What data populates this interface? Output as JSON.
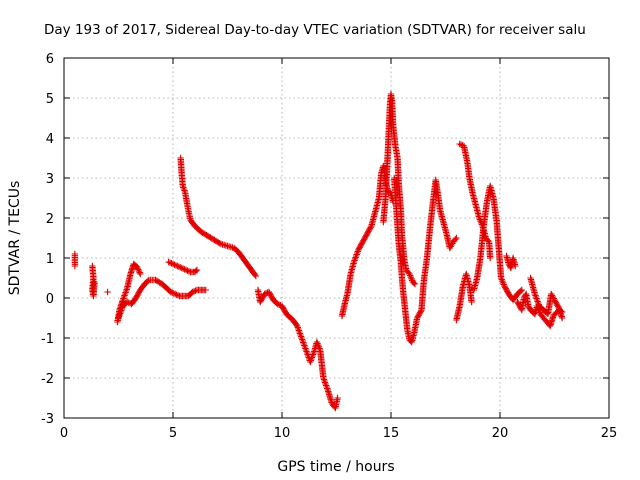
{
  "chart_data": {
    "type": "scatter",
    "title": "Day 193 of 2017, Sidereal Day-to-day VTEC variation (SDTVAR) for receiver salu",
    "xlabel": "GPS time / hours",
    "ylabel": "SDTVAR / TECUs",
    "xlim": [
      0,
      25
    ],
    "ylim": [
      -3,
      6
    ],
    "xticks": [
      0,
      5,
      10,
      15,
      20,
      25
    ],
    "yticks": [
      -3,
      -2,
      -1,
      0,
      1,
      2,
      3,
      4,
      5,
      6
    ],
    "grid": true,
    "marker": "+",
    "series": [
      {
        "name": "SDTVAR",
        "color": "#e00000",
        "segments": [
          [
            [
              0.5,
              1.1
            ],
            [
              0.5,
              0.8
            ]
          ],
          [
            [
              1.3,
              0.8
            ],
            [
              1.35,
              0.5
            ],
            [
              1.3,
              0.2
            ],
            [
              1.35,
              0.05
            ],
            [
              1.4,
              0.4
            ]
          ],
          [
            [
              2.0,
              0.15
            ]
          ],
          [
            [
              2.45,
              -0.6
            ],
            [
              2.55,
              -0.3
            ],
            [
              2.7,
              -0.05
            ],
            [
              2.9,
              0.25
            ],
            [
              3.05,
              0.6
            ],
            [
              3.2,
              0.85
            ],
            [
              3.35,
              0.78
            ],
            [
              3.5,
              0.6
            ]
          ],
          [
            [
              2.5,
              -0.5
            ],
            [
              2.7,
              -0.2
            ],
            [
              2.9,
              -0.1
            ],
            [
              3.1,
              -0.15
            ],
            [
              3.3,
              0.0
            ],
            [
              3.5,
              0.2
            ],
            [
              3.7,
              0.35
            ],
            [
              3.9,
              0.45
            ],
            [
              4.2,
              0.45
            ],
            [
              4.5,
              0.35
            ],
            [
              4.7,
              0.25
            ],
            [
              4.9,
              0.15
            ],
            [
              5.1,
              0.1
            ],
            [
              5.3,
              0.05
            ],
            [
              5.5,
              0.05
            ],
            [
              5.7,
              0.05
            ],
            [
              5.9,
              0.15
            ],
            [
              6.1,
              0.2
            ],
            [
              6.3,
              0.2
            ],
            [
              6.5,
              0.2
            ]
          ],
          [
            [
              4.8,
              0.9
            ],
            [
              5.0,
              0.85
            ],
            [
              5.2,
              0.8
            ],
            [
              5.4,
              0.75
            ],
            [
              5.6,
              0.7
            ],
            [
              5.8,
              0.65
            ],
            [
              6.0,
              0.65
            ],
            [
              6.1,
              0.7
            ]
          ],
          [
            [
              5.35,
              3.5
            ],
            [
              5.4,
              3.1
            ],
            [
              5.45,
              2.8
            ],
            [
              5.55,
              2.65
            ],
            [
              5.7,
              2.2
            ],
            [
              5.8,
              1.95
            ],
            [
              6.0,
              1.8
            ],
            [
              6.3,
              1.65
            ],
            [
              6.6,
              1.55
            ],
            [
              6.9,
              1.45
            ],
            [
              7.2,
              1.35
            ],
            [
              7.5,
              1.3
            ],
            [
              7.8,
              1.25
            ],
            [
              8.0,
              1.15
            ],
            [
              8.2,
              1.0
            ],
            [
              8.4,
              0.85
            ],
            [
              8.6,
              0.7
            ],
            [
              8.8,
              0.55
            ]
          ],
          [
            [
              8.9,
              0.2
            ],
            [
              9.0,
              -0.1
            ],
            [
              9.2,
              0.1
            ],
            [
              9.4,
              0.15
            ],
            [
              9.6,
              -0.05
            ],
            [
              9.8,
              -0.15
            ],
            [
              10.0,
              -0.2
            ],
            [
              10.2,
              -0.4
            ],
            [
              10.5,
              -0.55
            ],
            [
              10.7,
              -0.7
            ],
            [
              10.9,
              -1.0
            ],
            [
              11.1,
              -1.3
            ],
            [
              11.3,
              -1.6
            ],
            [
              11.5,
              -1.3
            ],
            [
              11.6,
              -1.1
            ],
            [
              11.75,
              -1.3
            ],
            [
              11.9,
              -2.0
            ],
            [
              12.1,
              -2.3
            ],
            [
              12.3,
              -2.65
            ],
            [
              12.45,
              -2.75
            ],
            [
              12.55,
              -2.5
            ]
          ],
          [
            [
              12.75,
              -0.45
            ],
            [
              12.9,
              -0.1
            ],
            [
              13.0,
              0.1
            ],
            [
              13.15,
              0.6
            ],
            [
              13.3,
              0.9
            ],
            [
              13.5,
              1.2
            ],
            [
              13.7,
              1.4
            ],
            [
              13.9,
              1.6
            ],
            [
              14.1,
              1.8
            ],
            [
              14.3,
              2.2
            ],
            [
              14.45,
              2.5
            ],
            [
              14.55,
              3.1
            ],
            [
              14.65,
              3.3
            ],
            [
              14.75,
              2.9
            ],
            [
              14.85,
              2.7
            ],
            [
              15.0,
              2.6
            ],
            [
              15.1,
              2.4
            ]
          ],
          [
            [
              14.65,
              1.9
            ],
            [
              14.75,
              2.5
            ],
            [
              14.85,
              3.6
            ],
            [
              14.9,
              4.2
            ],
            [
              14.95,
              4.8
            ],
            [
              15.0,
              5.1
            ],
            [
              15.05,
              4.9
            ],
            [
              15.1,
              4.3
            ],
            [
              15.2,
              3.8
            ],
            [
              15.3,
              3.5
            ],
            [
              15.35,
              2.9
            ],
            [
              15.45,
              2.2
            ],
            [
              15.5,
              1.6
            ],
            [
              15.6,
              1.0
            ],
            [
              15.7,
              0.7
            ],
            [
              15.85,
              0.6
            ],
            [
              16.0,
              0.4
            ],
            [
              16.1,
              0.35
            ]
          ],
          [
            [
              15.15,
              3.0
            ],
            [
              15.25,
              2.2
            ],
            [
              15.35,
              1.4
            ],
            [
              15.45,
              0.9
            ],
            [
              15.55,
              0.2
            ],
            [
              15.65,
              -0.3
            ],
            [
              15.75,
              -0.8
            ],
            [
              15.85,
              -1.05
            ],
            [
              15.95,
              -1.1
            ],
            [
              16.05,
              -0.9
            ],
            [
              16.2,
              -0.5
            ],
            [
              16.4,
              -0.3
            ],
            [
              16.5,
              0.4
            ],
            [
              16.65,
              1.0
            ],
            [
              16.8,
              1.8
            ],
            [
              16.95,
              2.5
            ],
            [
              17.05,
              2.95
            ],
            [
              17.15,
              2.6
            ],
            [
              17.25,
              2.2
            ],
            [
              17.35,
              2.0
            ],
            [
              17.45,
              1.8
            ],
            [
              17.55,
              1.6
            ],
            [
              17.7,
              1.25
            ],
            [
              17.85,
              1.4
            ],
            [
              18.0,
              1.5
            ]
          ],
          [
            [
              18.0,
              -0.55
            ],
            [
              18.15,
              -0.2
            ],
            [
              18.3,
              0.3
            ],
            [
              18.45,
              0.6
            ],
            [
              18.6,
              0.3
            ],
            [
              18.7,
              -0.1
            ]
          ],
          [
            [
              18.15,
              3.85
            ],
            [
              18.35,
              3.8
            ],
            [
              18.5,
              3.4
            ],
            [
              18.6,
              3.0
            ],
            [
              18.75,
              2.6
            ],
            [
              18.9,
              2.3
            ],
            [
              19.05,
              2.0
            ],
            [
              19.2,
              1.8
            ],
            [
              19.35,
              1.5
            ],
            [
              19.5,
              1.4
            ],
            [
              19.55,
              1.0
            ]
          ],
          [
            [
              18.8,
              0.2
            ],
            [
              18.95,
              0.5
            ],
            [
              19.1,
              1.0
            ],
            [
              19.25,
              1.8
            ],
            [
              19.4,
              2.4
            ],
            [
              19.55,
              2.8
            ],
            [
              19.7,
              2.5
            ],
            [
              19.85,
              1.9
            ],
            [
              19.95,
              1.2
            ],
            [
              20.05,
              0.5
            ],
            [
              20.2,
              0.3
            ],
            [
              20.4,
              0.1
            ],
            [
              20.6,
              -0.05
            ],
            [
              20.8,
              0.1
            ],
            [
              21.0,
              0.2
            ]
          ],
          [
            [
              20.3,
              1.05
            ],
            [
              20.4,
              0.85
            ],
            [
              20.5,
              0.75
            ],
            [
              20.6,
              1.0
            ],
            [
              20.7,
              0.8
            ]
          ],
          [
            [
              20.8,
              -0.1
            ],
            [
              21.0,
              -0.3
            ],
            [
              21.1,
              0.0
            ],
            [
              21.2,
              0.1
            ],
            [
              21.3,
              -0.2
            ],
            [
              21.4,
              -0.3
            ],
            [
              21.6,
              -0.4
            ],
            [
              21.7,
              -0.2
            ],
            [
              21.85,
              -0.4
            ],
            [
              22.0,
              -0.5
            ],
            [
              22.15,
              -0.6
            ],
            [
              22.3,
              -0.7
            ],
            [
              22.45,
              -0.45
            ],
            [
              22.6,
              -0.35
            ],
            [
              22.75,
              -0.3
            ],
            [
              22.85,
              -0.35
            ]
          ],
          [
            [
              21.4,
              0.5
            ],
            [
              21.6,
              0.1
            ],
            [
              21.8,
              -0.2
            ],
            [
              22.0,
              -0.3
            ],
            [
              22.2,
              -0.4
            ],
            [
              22.35,
              0.1
            ],
            [
              22.5,
              -0.05
            ],
            [
              22.7,
              -0.25
            ],
            [
              22.85,
              -0.5
            ]
          ]
        ]
      }
    ]
  }
}
